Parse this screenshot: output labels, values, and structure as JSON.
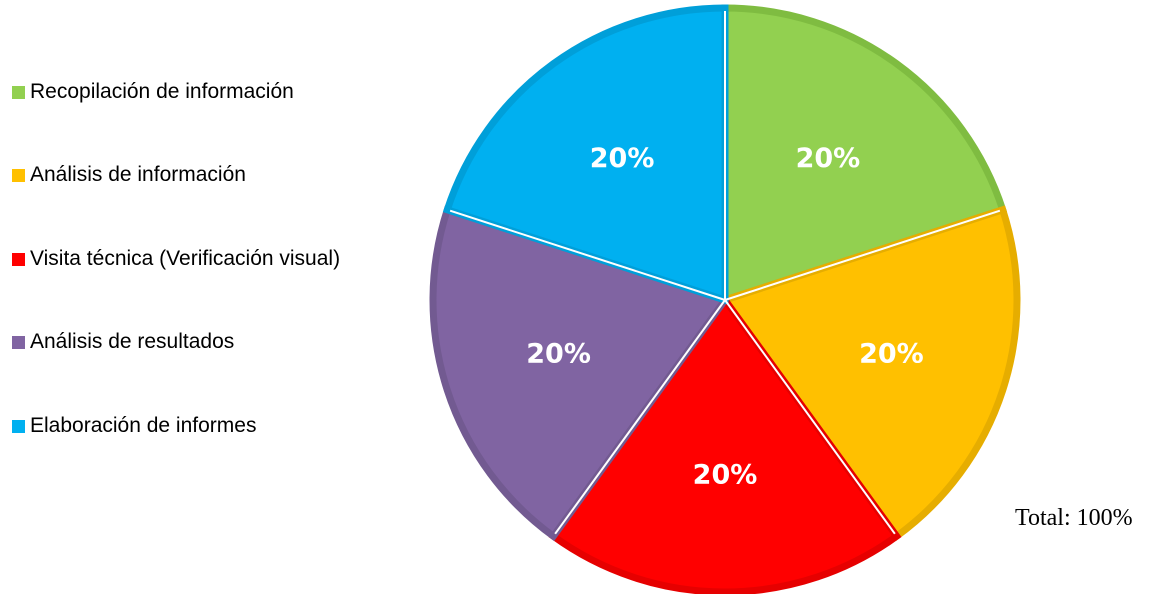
{
  "chart_data": {
    "type": "pie",
    "categories": [
      "Recopilación de información",
      "Análisis de información",
      "Visita técnica (Verificación visual)",
      "Análisis de resultados",
      "Elaboración de informes"
    ],
    "values": [
      20,
      20,
      20,
      20,
      20
    ],
    "data_labels": [
      "20%",
      "20%",
      "20%",
      "20%",
      "20%"
    ],
    "colors": [
      "#92d050",
      "#ffc000",
      "#ff0000",
      "#8064a2",
      "#00b0f0"
    ],
    "border_colors": [
      "#7fbc41",
      "#e6ad00",
      "#e60000",
      "#725a91",
      "#009fd9"
    ],
    "legend_position": "left",
    "start_angle_deg": 0,
    "direction": "clockwise"
  },
  "total_text": "Total: 100%"
}
